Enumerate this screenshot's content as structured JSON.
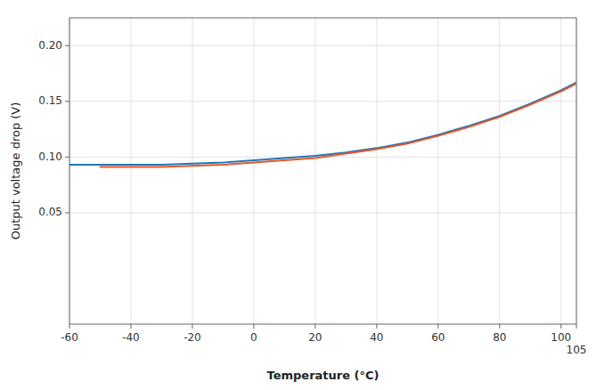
{
  "chart_data": {
    "type": "line",
    "xlabel": "Temperature (°C)",
    "ylabel": "Output voltage drop (V)",
    "x": [
      -60,
      -50,
      -40,
      -30,
      -20,
      -10,
      0,
      10,
      20,
      30,
      40,
      50,
      60,
      70,
      80,
      90,
      100,
      105
    ],
    "series": [
      {
        "values": [
          0.093,
          0.093,
          0.093,
          0.093,
          0.094,
          0.095,
          0.097,
          0.099,
          0.101,
          0.104,
          0.108,
          0.113,
          0.12,
          0.128,
          0.137,
          0.148,
          0.16,
          0.167
        ]
      },
      {
        "values": [
          null,
          0.091,
          0.091,
          0.091,
          0.092,
          0.093,
          0.095,
          0.097,
          0.099,
          0.103,
          0.107,
          0.112,
          0.119,
          0.127,
          0.136,
          0.147,
          0.159,
          0.166
        ]
      }
    ],
    "xlim": [
      -60,
      105
    ],
    "ylim": [
      -0.05,
      0.225
    ],
    "xticks": [
      -60,
      -40,
      -20,
      0,
      20,
      40,
      60,
      80,
      100,
      105
    ],
    "yticks": [
      0.05,
      {
        "value": 0.1,
        "label": "0.10"
      },
      0.15,
      {
        "value": 0.2,
        "label": "0.20"
      }
    ],
    "grid": true
  }
}
